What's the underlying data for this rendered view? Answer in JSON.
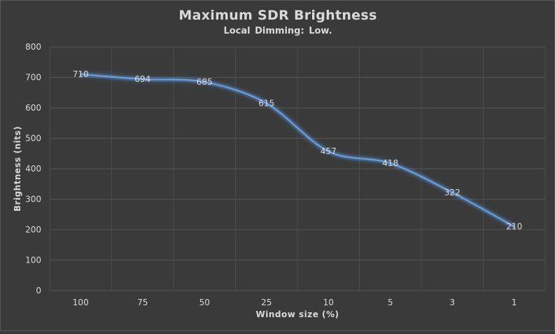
{
  "chart_data": {
    "type": "line",
    "title": "Maximum SDR Brightness",
    "subtitle": "Local Dimming:  Low.",
    "xlabel": "Window size (%)",
    "ylabel": "Brightness  (nits)",
    "categories": [
      "100",
      "75",
      "50",
      "25",
      "10",
      "5",
      "3",
      "1"
    ],
    "series": [
      {
        "values": [
          710,
          694,
          685,
          615,
          457,
          418,
          322,
          210
        ]
      }
    ],
    "ylim": [
      0,
      800
    ],
    "yticks": [
      0,
      100,
      200,
      300,
      400,
      500,
      600,
      700,
      800
    ],
    "grid": true,
    "data_labels": true,
    "line_color": "#6f9fd8",
    "glow_color": "#4f81bd"
  }
}
